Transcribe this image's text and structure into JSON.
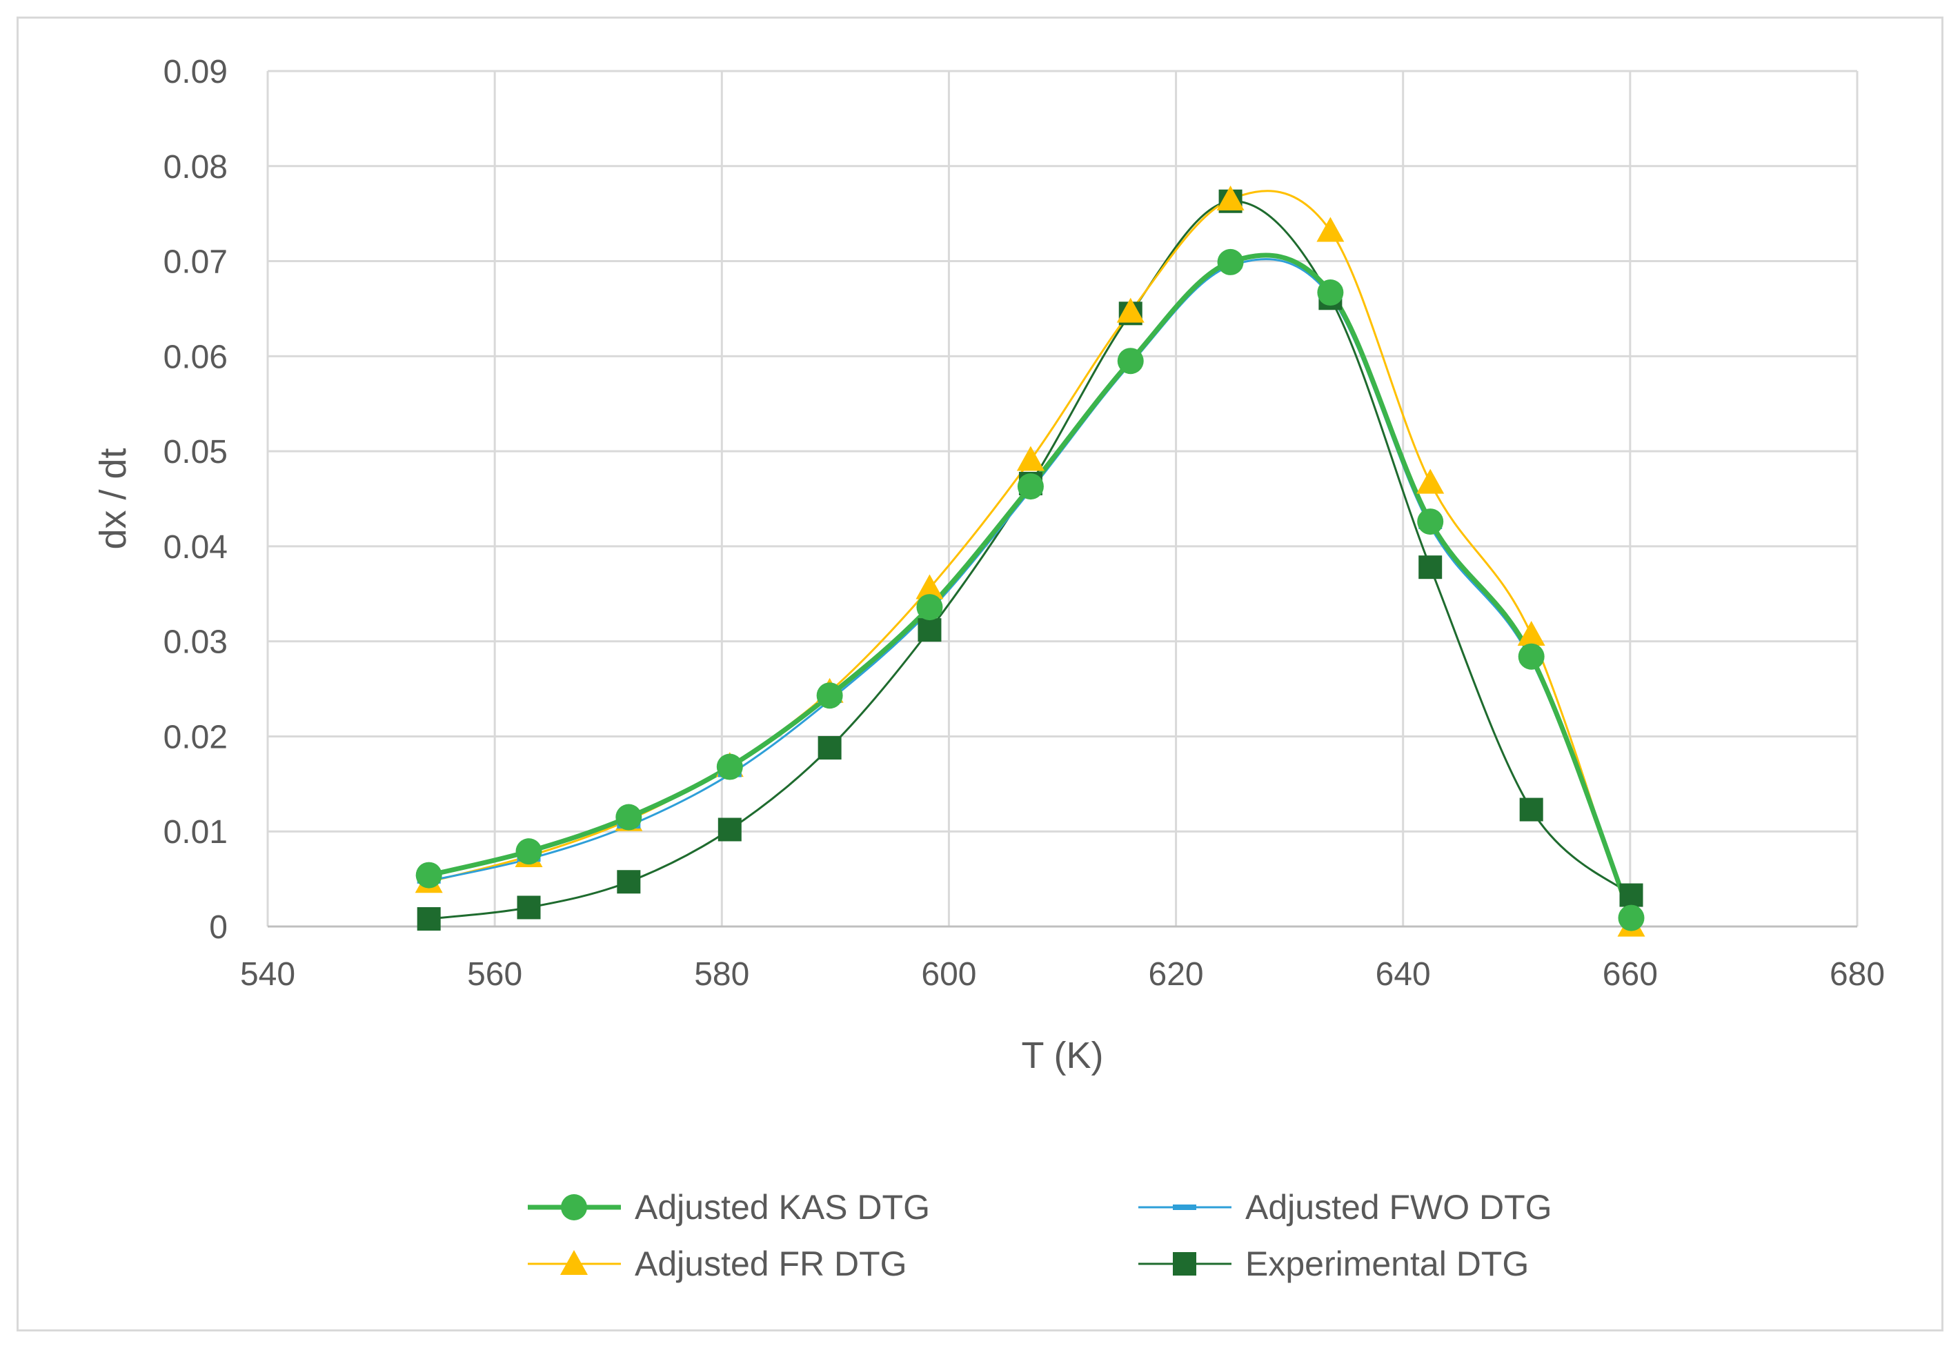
{
  "chart_data": {
    "type": "line",
    "title": "",
    "xlabel": "T (K)",
    "ylabel": "dx / dt",
    "xlim": [
      540,
      680
    ],
    "ylim": [
      0,
      0.09
    ],
    "x_ticks": [
      540,
      560,
      580,
      600,
      620,
      640,
      660,
      680
    ],
    "x_tick_labels": [
      "540",
      "560",
      "580",
      "600",
      "620",
      "640",
      "660",
      "680"
    ],
    "y_ticks": [
      0,
      0.01,
      0.02,
      0.03,
      0.04,
      0.05,
      0.06,
      0.07,
      0.08,
      0.09
    ],
    "y_tick_labels": [
      "0",
      "0.01",
      "0.02",
      "0.03",
      "0.04",
      "0.05",
      "0.06",
      "0.07",
      "0.08",
      "0.09"
    ],
    "grid": true,
    "legend_position": "bottom",
    "x": [
      554.2,
      563,
      571.8,
      580.7,
      589.5,
      598.3,
      607.2,
      616,
      624.8,
      633.6,
      642.4,
      651.3,
      660.1
    ],
    "series": [
      {
        "name": "Adjusted KAS DTG",
        "color": "#3cb44b",
        "marker": "circle",
        "values": [
          0.0054,
          0.0079,
          0.0115,
          0.0168,
          0.0243,
          0.0336,
          0.0463,
          0.0595,
          0.0699,
          0.0667,
          0.0426,
          0.0284,
          0.0009
        ]
      },
      {
        "name": "Adjusted FWO DTG",
        "color": "#2e9fd8",
        "marker": "dash",
        "values": [
          0.0048,
          0.0071,
          0.0106,
          0.016,
          0.0238,
          0.0332,
          0.0459,
          0.0592,
          0.0695,
          0.0663,
          0.0421,
          0.028,
          0.0006
        ]
      },
      {
        "name": "Adjusted FR DTG",
        "color": "#ffc000",
        "marker": "triangle",
        "values": [
          0.0047,
          0.0074,
          0.0112,
          0.0169,
          0.0247,
          0.0356,
          0.0491,
          0.0647,
          0.0765,
          0.0732,
          0.0467,
          0.0307,
          0.0001
        ]
      },
      {
        "name": "Experimental DTG",
        "color": "#1e6b2e",
        "marker": "square",
        "values": [
          0.0008,
          0.002,
          0.0047,
          0.0102,
          0.0188,
          0.0312,
          0.0466,
          0.0645,
          0.0763,
          0.0661,
          0.0378,
          0.0123,
          0.0033
        ]
      }
    ]
  }
}
